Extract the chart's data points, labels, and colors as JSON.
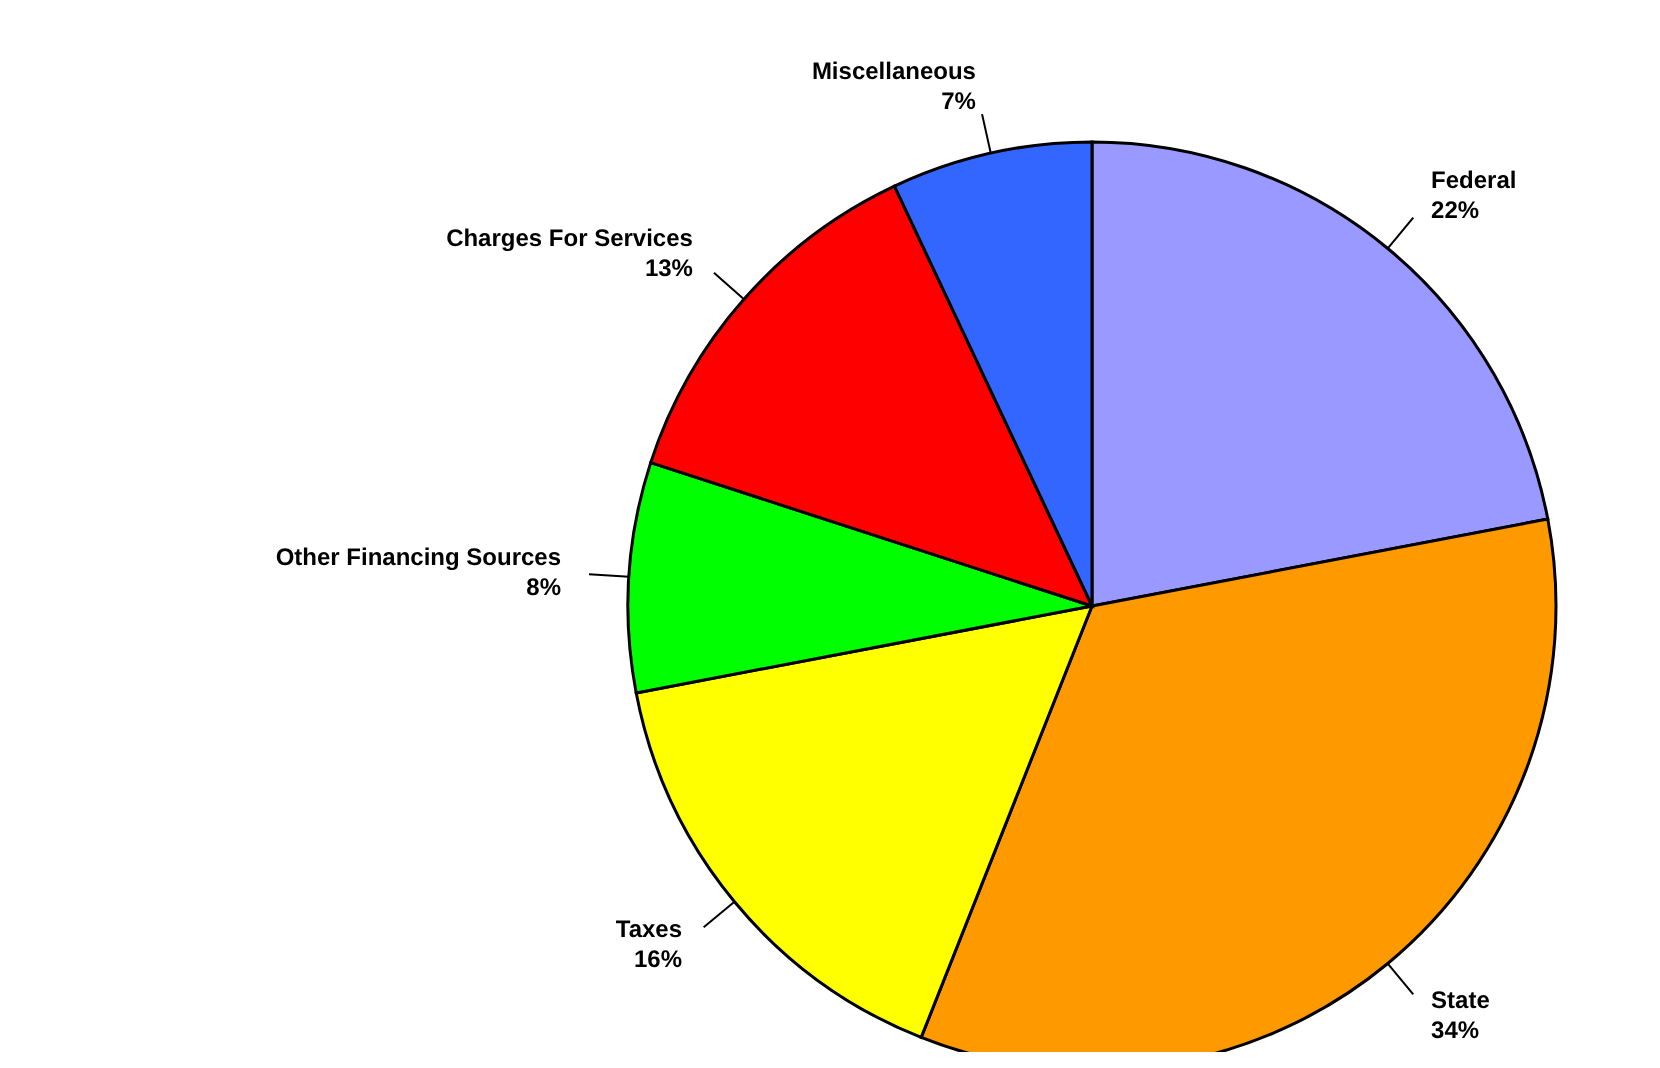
{
  "chart_data": {
    "type": "pie",
    "categories": [
      "Federal",
      "State",
      "Taxes",
      "Other Financing Sources",
      "Charges For Services",
      "Miscellaneous"
    ],
    "values": [
      22,
      34,
      16,
      8,
      13,
      7
    ],
    "value_labels": [
      "22%",
      "34%",
      "16%",
      "8%",
      "13%",
      "7%"
    ],
    "colors": [
      "#9999ff",
      "#ff9900",
      "#ffff00",
      "#00ff00",
      "#ff0000",
      "#3366ff"
    ]
  }
}
